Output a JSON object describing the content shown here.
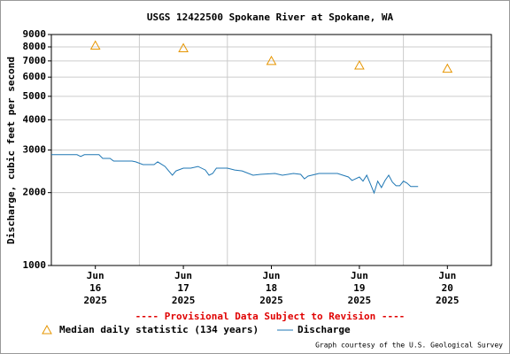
{
  "chart_data": {
    "type": "line",
    "title": "USGS 12422500 Spokane River at Spokane, WA",
    "y_label": "Discharge, cubic feet per second",
    "annotation": "---- Provisional Data Subject to Revision ----",
    "credit": "Graph courtesy of the U.S. Geological Survey",
    "log_y": true,
    "grid": true,
    "ylim": [
      1000,
      9000
    ],
    "yticks": [
      1000,
      2000,
      3000,
      4000,
      5000,
      6000,
      7000,
      8000,
      9000
    ],
    "xlim": [
      "2025-06-16T00:00",
      "2025-06-21T00:00"
    ],
    "xticks": [
      {
        "value": "2025-06-16T12:00",
        "label": [
          "Jun",
          "16",
          "2025"
        ]
      },
      {
        "value": "2025-06-17T12:00",
        "label": [
          "Jun",
          "17",
          "2025"
        ]
      },
      {
        "value": "2025-06-18T12:00",
        "label": [
          "Jun",
          "18",
          "2025"
        ]
      },
      {
        "value": "2025-06-19T12:00",
        "label": [
          "Jun",
          "19",
          "2025"
        ]
      },
      {
        "value": "2025-06-20T12:00",
        "label": [
          "Jun",
          "20",
          "2025"
        ]
      }
    ],
    "xgrid": [
      "2025-06-17T00:00",
      "2025-06-18T00:00",
      "2025-06-19T00:00",
      "2025-06-20T00:00"
    ],
    "series": [
      {
        "name": "Median daily statistic (134 years)",
        "color": "#e69500",
        "marker": "triangle",
        "x": [
          "2025-06-16T12:00",
          "2025-06-17T12:00",
          "2025-06-18T12:00",
          "2025-06-19T12:00",
          "2025-06-20T12:00"
        ],
        "values": [
          8100,
          7900,
          7000,
          6700,
          6500
        ]
      },
      {
        "name": "Discharge",
        "color": "#1f77b4",
        "marker": "line",
        "x": [
          "2025-06-16T00:00",
          "2025-06-16T07:00",
          "2025-06-16T08:00",
          "2025-06-16T09:00",
          "2025-06-16T13:00",
          "2025-06-16T14:00",
          "2025-06-16T16:00",
          "2025-06-16T17:00",
          "2025-06-16T22:00",
          "2025-06-16T23:00",
          "2025-06-17T01:00",
          "2025-06-17T04:00",
          "2025-06-17T05:00",
          "2025-06-17T07:00",
          "2025-06-17T08:00",
          "2025-06-17T09:00",
          "2025-06-17T10:00",
          "2025-06-17T12:00",
          "2025-06-17T14:00",
          "2025-06-17T16:00",
          "2025-06-17T18:00",
          "2025-06-17T19:00",
          "2025-06-17T20:00",
          "2025-06-17T21:00",
          "2025-06-18T00:00",
          "2025-06-18T02:00",
          "2025-06-18T04:00",
          "2025-06-18T07:00",
          "2025-06-18T09:00",
          "2025-06-18T13:00",
          "2025-06-18T15:00",
          "2025-06-18T18:00",
          "2025-06-18T20:00",
          "2025-06-18T21:00",
          "2025-06-18T22:00",
          "2025-06-19T01:00",
          "2025-06-19T06:00",
          "2025-06-19T09:00",
          "2025-06-19T10:00",
          "2025-06-19T12:00",
          "2025-06-19T13:00",
          "2025-06-19T14:00",
          "2025-06-19T15:00",
          "2025-06-19T16:00",
          "2025-06-19T17:00",
          "2025-06-19T18:00",
          "2025-06-19T19:00",
          "2025-06-19T20:00",
          "2025-06-19T21:00",
          "2025-06-19T22:00",
          "2025-06-19T23:00",
          "2025-06-20T00:00",
          "2025-06-20T01:00",
          "2025-06-20T02:00",
          "2025-06-20T04:00"
        ],
        "values": [
          2870,
          2870,
          2820,
          2870,
          2870,
          2770,
          2770,
          2700,
          2700,
          2680,
          2610,
          2610,
          2680,
          2565,
          2460,
          2360,
          2460,
          2525,
          2525,
          2565,
          2480,
          2360,
          2400,
          2525,
          2525,
          2480,
          2460,
          2360,
          2380,
          2400,
          2360,
          2400,
          2380,
          2280,
          2340,
          2400,
          2400,
          2320,
          2245,
          2320,
          2230,
          2360,
          2175,
          1995,
          2230,
          2100,
          2245,
          2360,
          2210,
          2135,
          2135,
          2230,
          2190,
          2120,
          2120
        ]
      }
    ]
  }
}
